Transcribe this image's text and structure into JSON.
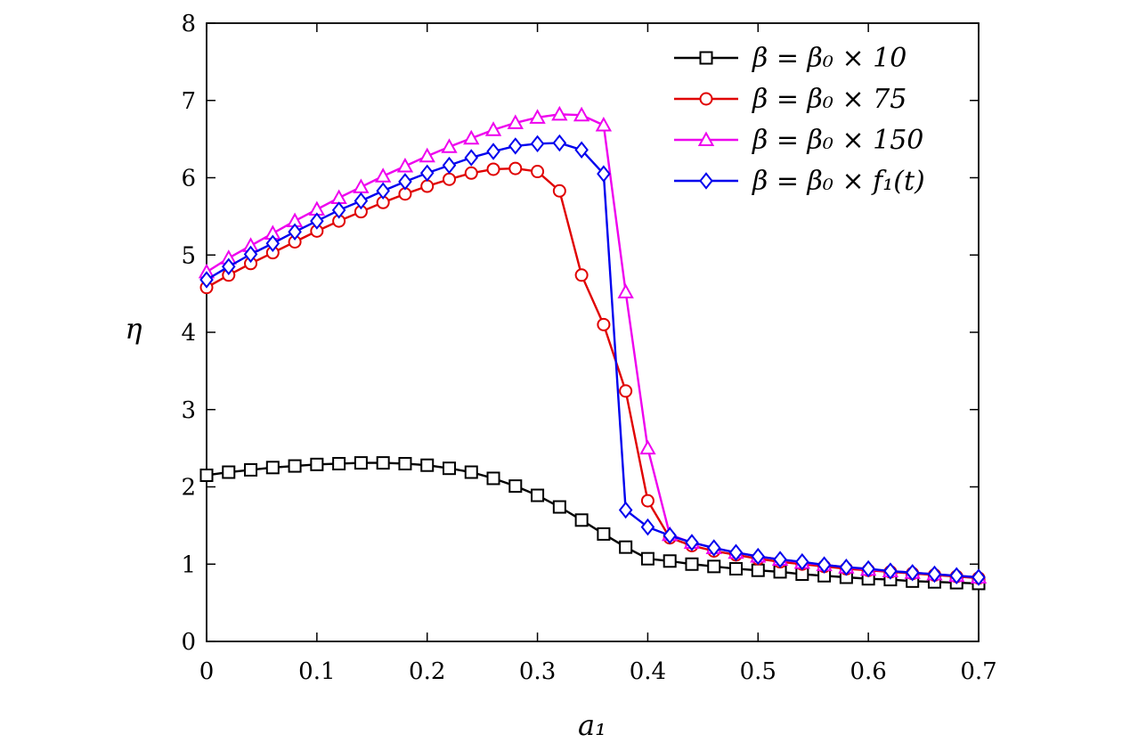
{
  "chart_data": {
    "type": "line",
    "xlabel": "a₁",
    "ylabel": "η",
    "xlim": [
      0,
      0.7
    ],
    "ylim": [
      0,
      8
    ],
    "x_ticks": [
      "0",
      "0.1",
      "0.2",
      "0.3",
      "0.4",
      "0.5",
      "0.6",
      "0.7"
    ],
    "y_ticks": [
      "0",
      "1",
      "2",
      "3",
      "4",
      "5",
      "6",
      "7",
      "8"
    ],
    "grid": false,
    "legend_position": "top-right",
    "series": [
      {
        "name": "β = β₀ × 10",
        "color": "#000000",
        "marker": "square",
        "x": [
          0,
          0.02,
          0.04,
          0.06,
          0.08,
          0.1,
          0.12,
          0.14,
          0.16,
          0.18,
          0.2,
          0.22,
          0.24,
          0.26,
          0.28,
          0.3,
          0.32,
          0.34,
          0.36,
          0.38,
          0.4,
          0.42,
          0.44,
          0.46,
          0.48,
          0.5,
          0.52,
          0.54,
          0.56,
          0.58,
          0.6,
          0.62,
          0.64,
          0.66,
          0.68,
          0.7
        ],
        "y": [
          2.15,
          2.19,
          2.22,
          2.25,
          2.27,
          2.29,
          2.3,
          2.31,
          2.31,
          2.3,
          2.28,
          2.24,
          2.19,
          2.11,
          2.01,
          1.89,
          1.74,
          1.57,
          1.39,
          1.22,
          1.07,
          1.04,
          1.0,
          0.97,
          0.94,
          0.92,
          0.9,
          0.87,
          0.85,
          0.83,
          0.81,
          0.8,
          0.78,
          0.77,
          0.76,
          0.75
        ]
      },
      {
        "name": "β = β₀ × 75",
        "color": "#e00000",
        "marker": "circle",
        "x": [
          0,
          0.02,
          0.04,
          0.06,
          0.08,
          0.1,
          0.12,
          0.14,
          0.16,
          0.18,
          0.2,
          0.22,
          0.24,
          0.26,
          0.28,
          0.3,
          0.32,
          0.34,
          0.36,
          0.38,
          0.4,
          0.42,
          0.44,
          0.46,
          0.48,
          0.5,
          0.52,
          0.54,
          0.56,
          0.58,
          0.6,
          0.62,
          0.64,
          0.66,
          0.68,
          0.7
        ],
        "y": [
          4.58,
          4.74,
          4.89,
          5.03,
          5.17,
          5.31,
          5.44,
          5.56,
          5.68,
          5.79,
          5.89,
          5.98,
          6.06,
          6.11,
          6.12,
          6.08,
          5.83,
          4.74,
          4.1,
          3.24,
          1.82,
          1.34,
          1.24,
          1.17,
          1.12,
          1.07,
          1.03,
          1.0,
          0.97,
          0.94,
          0.92,
          0.9,
          0.88,
          0.86,
          0.84,
          0.82
        ]
      },
      {
        "name": "β = β₀ × 150",
        "color": "#ee00ee",
        "marker": "triangle",
        "x": [
          0,
          0.02,
          0.04,
          0.06,
          0.08,
          0.1,
          0.12,
          0.14,
          0.16,
          0.18,
          0.2,
          0.22,
          0.24,
          0.26,
          0.28,
          0.3,
          0.32,
          0.34,
          0.36,
          0.38,
          0.4,
          0.42,
          0.44,
          0.46,
          0.48,
          0.5,
          0.52,
          0.54,
          0.56,
          0.58,
          0.6,
          0.62,
          0.64,
          0.66,
          0.68,
          0.7
        ],
        "y": [
          4.78,
          4.96,
          5.12,
          5.28,
          5.44,
          5.59,
          5.74,
          5.88,
          6.02,
          6.15,
          6.28,
          6.4,
          6.51,
          6.62,
          6.71,
          6.78,
          6.82,
          6.81,
          6.68,
          4.52,
          2.5,
          1.38,
          1.28,
          1.21,
          1.15,
          1.1,
          1.06,
          1.02,
          0.99,
          0.96,
          0.93,
          0.91,
          0.89,
          0.87,
          0.85,
          0.83
        ]
      },
      {
        "name": "β = β₀ × f₁(t)",
        "color": "#0000ee",
        "marker": "diamond",
        "x": [
          0,
          0.02,
          0.04,
          0.06,
          0.08,
          0.1,
          0.12,
          0.14,
          0.16,
          0.18,
          0.2,
          0.22,
          0.24,
          0.26,
          0.28,
          0.3,
          0.32,
          0.34,
          0.36,
          0.38,
          0.4,
          0.42,
          0.44,
          0.46,
          0.48,
          0.5,
          0.52,
          0.54,
          0.56,
          0.58,
          0.6,
          0.62,
          0.64,
          0.66,
          0.68,
          0.7
        ],
        "y": [
          4.68,
          4.85,
          5.01,
          5.15,
          5.3,
          5.44,
          5.58,
          5.7,
          5.83,
          5.95,
          6.06,
          6.16,
          6.26,
          6.34,
          6.41,
          6.44,
          6.45,
          6.36,
          6.05,
          1.7,
          1.48,
          1.37,
          1.28,
          1.21,
          1.15,
          1.1,
          1.06,
          1.03,
          0.99,
          0.96,
          0.94,
          0.91,
          0.89,
          0.87,
          0.85,
          0.83
        ]
      }
    ]
  }
}
